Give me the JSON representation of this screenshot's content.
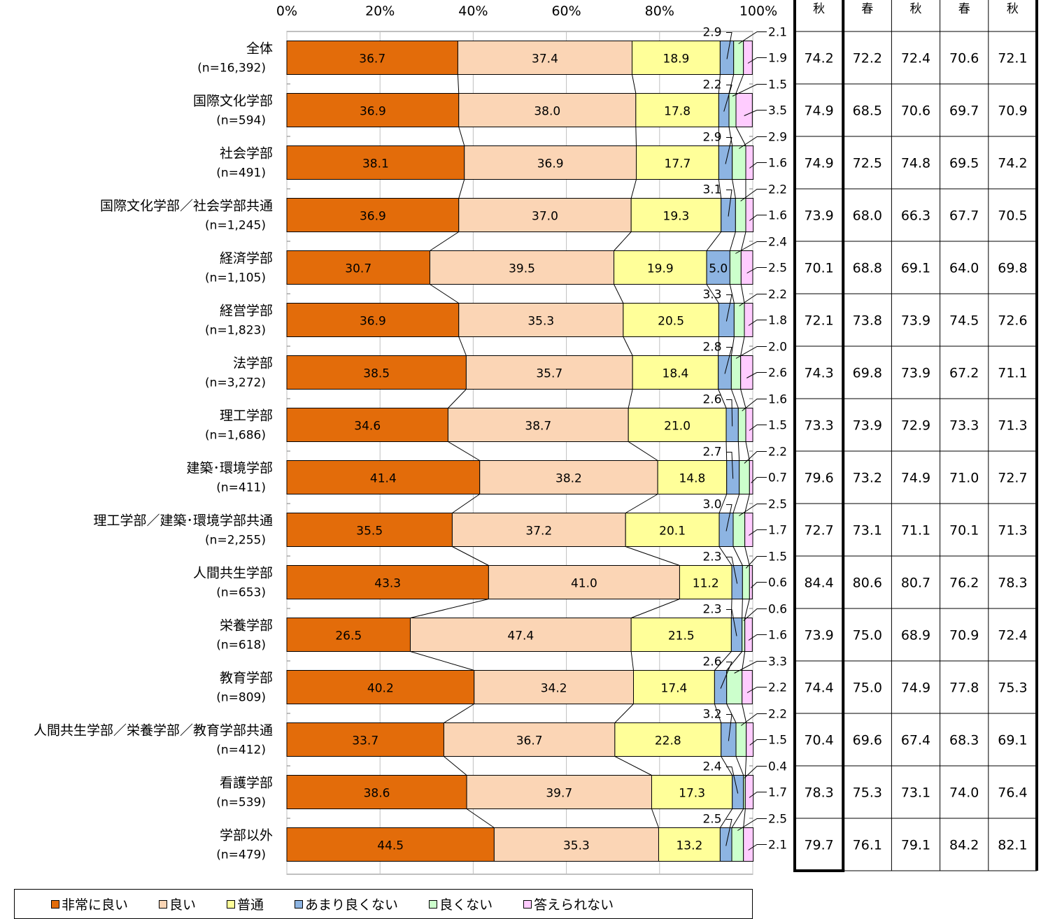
{
  "chart_data": {
    "type": "bar",
    "stacked": true,
    "orientation": "horizontal",
    "xlim": [
      0,
      100
    ],
    "x_ticks": [
      "0%",
      "20%",
      "40%",
      "60%",
      "80%",
      "100%"
    ],
    "grid": true,
    "categories": [
      {
        "name": "全体",
        "n": "(n=16,392)"
      },
      {
        "name": "国際文化学部",
        "n": "(n=594)"
      },
      {
        "name": "社会学部",
        "n": "(n=491)"
      },
      {
        "name": "国際文化学部／社会学部共通",
        "n": "(n=1,245)"
      },
      {
        "name": "経済学部",
        "n": "(n=1,105)"
      },
      {
        "name": "経営学部",
        "n": "(n=1,823)"
      },
      {
        "name": "法学部",
        "n": "(n=3,272)"
      },
      {
        "name": "理工学部",
        "n": "(n=1,686)"
      },
      {
        "name": "建築･環境学部",
        "n": "(n=411)"
      },
      {
        "name": "理工学部／建築･環境学部共通",
        "n": "(n=2,255)"
      },
      {
        "name": "人間共生学部",
        "n": "(n=653)"
      },
      {
        "name": "栄養学部",
        "n": "(n=618)"
      },
      {
        "name": "教育学部",
        "n": "(n=809)"
      },
      {
        "name": "人間共生学部／栄養学部／教育学部共通",
        "n": "(n=412)"
      },
      {
        "name": "看護学部",
        "n": "(n=539)"
      },
      {
        "name": "学部以外",
        "n": "(n=479)"
      }
    ],
    "series": [
      {
        "name": "非常に良い",
        "color": "#E36C0A",
        "values": [
          36.7,
          36.9,
          38.1,
          36.9,
          30.7,
          36.9,
          38.5,
          34.6,
          41.4,
          35.5,
          43.3,
          26.5,
          40.2,
          33.7,
          38.6,
          44.5
        ]
      },
      {
        "name": "良い",
        "color": "#FBD5B5",
        "values": [
          37.4,
          38.0,
          36.9,
          37.0,
          39.5,
          35.3,
          35.7,
          38.7,
          38.2,
          37.2,
          41.0,
          47.4,
          34.2,
          36.7,
          39.7,
          35.3
        ]
      },
      {
        "name": "普通",
        "color": "#FFFF99",
        "values": [
          18.9,
          17.8,
          17.7,
          19.3,
          19.9,
          20.5,
          18.4,
          21.0,
          14.8,
          20.1,
          11.2,
          21.5,
          17.4,
          22.8,
          17.3,
          13.2
        ]
      },
      {
        "name": "あまり良くない",
        "color": "#8DB4E2",
        "values": [
          2.9,
          2.2,
          2.9,
          3.1,
          5.0,
          3.3,
          2.8,
          2.6,
          2.7,
          3.0,
          2.3,
          2.3,
          2.6,
          3.2,
          2.4,
          2.5
        ]
      },
      {
        "name": "良くない",
        "color": "#CCFFCC",
        "values": [
          2.1,
          1.5,
          2.9,
          2.2,
          2.4,
          2.2,
          2.0,
          1.6,
          2.2,
          2.5,
          1.5,
          0.6,
          3.3,
          2.2,
          0.4,
          2.5
        ]
      },
      {
        "name": "答えられない",
        "color": "#FFCCFF",
        "values": [
          1.9,
          3.5,
          1.6,
          1.6,
          2.5,
          1.8,
          2.6,
          1.5,
          0.7,
          1.7,
          0.6,
          1.6,
          2.2,
          1.5,
          1.7,
          2.1
        ]
      }
    ],
    "side_table": {
      "headers": [
        "秋",
        "春",
        "秋",
        "春",
        "秋"
      ],
      "rows": [
        [
          "74.2",
          "72.2",
          "72.4",
          "70.6",
          "72.1"
        ],
        [
          "74.9",
          "68.5",
          "70.6",
          "69.7",
          "70.9"
        ],
        [
          "74.9",
          "72.5",
          "74.8",
          "69.5",
          "74.2"
        ],
        [
          "73.9",
          "68.0",
          "66.3",
          "67.7",
          "70.5"
        ],
        [
          "70.1",
          "68.8",
          "69.1",
          "64.0",
          "69.8"
        ],
        [
          "72.1",
          "73.8",
          "73.9",
          "74.5",
          "72.6"
        ],
        [
          "74.3",
          "69.8",
          "73.9",
          "67.2",
          "71.1"
        ],
        [
          "73.3",
          "73.9",
          "72.9",
          "73.3",
          "71.3"
        ],
        [
          "79.6",
          "73.2",
          "74.9",
          "71.0",
          "72.7"
        ],
        [
          "72.7",
          "73.1",
          "71.1",
          "70.1",
          "71.3"
        ],
        [
          "84.4",
          "80.6",
          "80.7",
          "76.2",
          "78.3"
        ],
        [
          "73.9",
          "75.0",
          "68.9",
          "70.9",
          "72.4"
        ],
        [
          "74.4",
          "75.0",
          "74.9",
          "77.8",
          "75.3"
        ],
        [
          "70.4",
          "69.6",
          "67.4",
          "68.3",
          "69.1"
        ],
        [
          "78.3",
          "75.3",
          "73.1",
          "74.0",
          "76.4"
        ],
        [
          "79.7",
          "76.1",
          "79.1",
          "84.2",
          "82.1"
        ]
      ]
    },
    "legend_position": "bottom"
  }
}
